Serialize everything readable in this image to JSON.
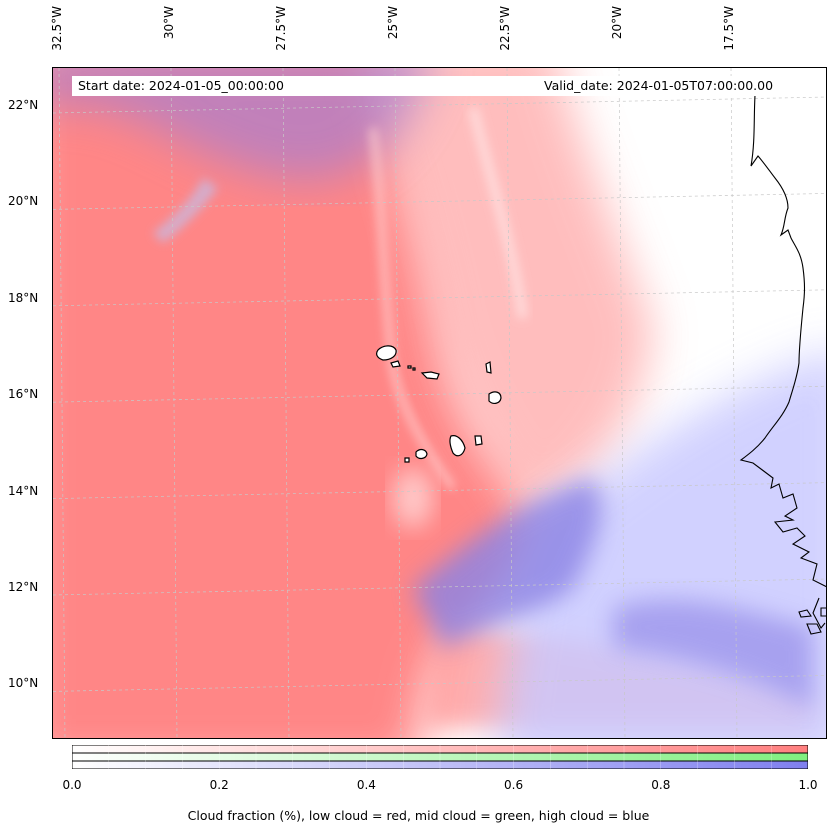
{
  "lon_labels": [
    {
      "text": "32.5°W",
      "value": -32.5
    },
    {
      "text": "30°W",
      "value": -30
    },
    {
      "text": "27.5°W",
      "value": -27.5
    },
    {
      "text": "25°W",
      "value": -25
    },
    {
      "text": "22.5°W",
      "value": -22.5
    },
    {
      "text": "20°W",
      "value": -20
    },
    {
      "text": "17.5°W",
      "value": -17.5
    }
  ],
  "lat_labels": [
    {
      "text": "22°N",
      "value": 22
    },
    {
      "text": "20°N",
      "value": 20
    },
    {
      "text": "18°N",
      "value": 18
    },
    {
      "text": "16°N",
      "value": 16
    },
    {
      "text": "14°N",
      "value": 14
    },
    {
      "text": "12°N",
      "value": 12
    },
    {
      "text": "10°N",
      "value": 10
    }
  ],
  "start_date": "Start date: 2024-01-05_00:00:00",
  "valid_date": "Valid_date: 2024-01-05T07:00:00.00",
  "colorbar": {
    "ticks": [
      "0.0",
      "0.2",
      "0.4",
      "0.6",
      "0.8",
      "1.0"
    ],
    "label": "Cloud fraction (%), low cloud = red, mid cloud = green, high cloud = blue",
    "colors": {
      "low": "#ff7f7f",
      "mid": "#7fef7f",
      "high": "#7f7fef"
    }
  },
  "colors": {
    "low_cloud": "#ff7f7f",
    "high_cloud": "#8f86e6",
    "coastline": "#000000",
    "gridline": "#c8c8c8"
  }
}
